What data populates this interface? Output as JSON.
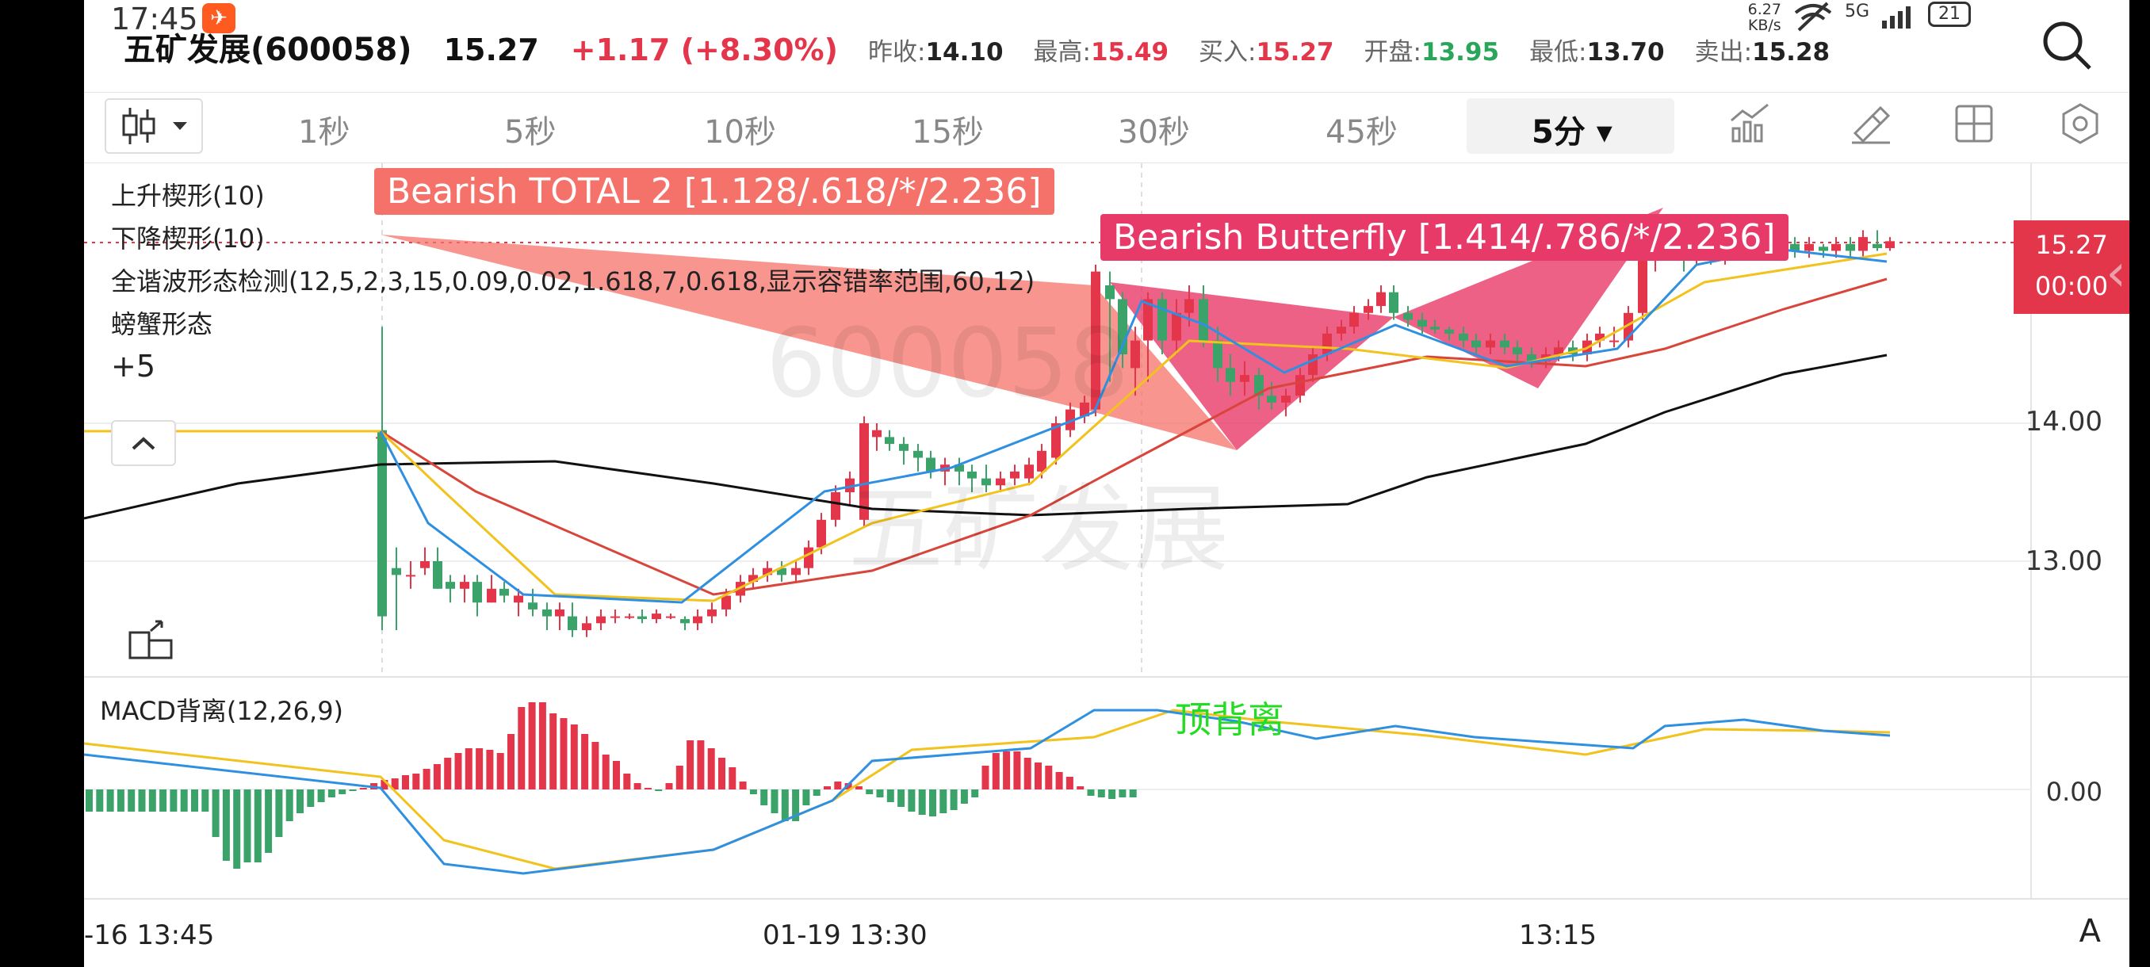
{
  "status_bar": {
    "time": "17:45",
    "net_speed_value": "6.27",
    "net_speed_unit": "KB/s",
    "network": "5G",
    "battery": "21"
  },
  "quote": {
    "name": "五矿发展(600058)",
    "price": "15.27",
    "change": "+1.17 (+8.30%)",
    "prev_close_label": "昨收:",
    "prev_close": "14.10",
    "high_label": "最高:",
    "high": "15.49",
    "bid_label": "买入:",
    "bid": "15.27",
    "open_label": "开盘:",
    "open": "13.95",
    "low_label": "最低:",
    "low": "13.70",
    "ask_label": "卖出:",
    "ask": "15.28"
  },
  "toolbar": {
    "timeframes": [
      "1秒",
      "5秒",
      "10秒",
      "15秒",
      "30秒",
      "45秒"
    ],
    "active_timeframe": "5分",
    "icons": [
      "candlestick-type-icon",
      "indicator-icon",
      "draw-icon",
      "layout-icon",
      "settings-icon"
    ]
  },
  "main_chart": {
    "indicators": [
      "上升楔形(10)",
      "下降楔形(10)",
      "全谐波形态检测(12,5,2,3,15,0.09,0.02,1.618,7,0.618,显示容错率范围,60,12)",
      "螃蟹形态"
    ],
    "indicator_more": "+5",
    "patterns": [
      {
        "label": "Bearish TOTAL 2 [1.128/.618/*/2.236]",
        "color": "#f5726a"
      },
      {
        "label": "Bearish Butterfly [1.414/.786/*/2.236]",
        "color": "#e83a68"
      }
    ],
    "price_levels": [
      "14.00",
      "13.00"
    ],
    "current_price_tag": {
      "price": "15.27",
      "countdown": "00:00"
    },
    "watermark_code": "600058",
    "watermark_name": "五矿发展",
    "colors": {
      "up": "#e4364b",
      "down": "#3ba36a",
      "ma_blue": "#2f8fe0",
      "ma_yellow": "#f2c21d",
      "ma_red": "#d9443b",
      "ma_black": "#111111"
    }
  },
  "macd": {
    "label": "MACD背离(12,26,9)",
    "annotation": "顶背离",
    "zero_label": "0.00"
  },
  "time_axis": [
    "-16 13:45",
    "01-19 13:30",
    "13:15"
  ],
  "corner_label": "A"
}
